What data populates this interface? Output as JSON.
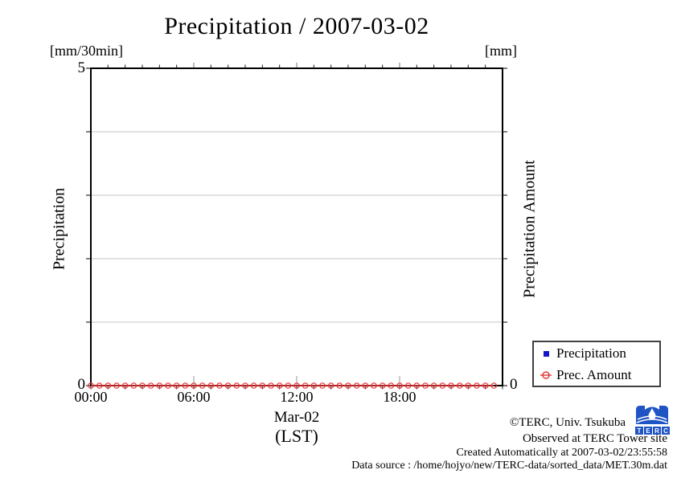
{
  "title": "Precipitation / 2007-03-02",
  "left_axis": {
    "unit": "[mm/30min]",
    "label": "Precipitation",
    "tick_top": "5",
    "tick_bottom": "0"
  },
  "right_axis": {
    "unit": "[mm]",
    "label": "Precipitation Amount",
    "tick_bottom": "0"
  },
  "x_axis": {
    "ticks": [
      "00:00",
      "06:00",
      "12:00",
      "18:00"
    ],
    "date_label": "Mar-02",
    "tz_label": "(LST)"
  },
  "legend": {
    "items": [
      {
        "label": "Precipitation",
        "marker": "square",
        "color": "#1414cc"
      },
      {
        "label": "Prec. Amount",
        "marker": "circle",
        "color": "#e23333"
      }
    ]
  },
  "footer": {
    "line1": "©TERC, Univ. Tsukuba",
    "line2": "Observed at TERC Tower site",
    "line3": "Created Automatically at 2007-03-02/23:55:58",
    "line4": "Data source : /home/hojyo/new/TERC-data/sorted_data/MET.30m.dat"
  },
  "logo": {
    "letters": [
      "T",
      "E",
      "R",
      "C"
    ],
    "color": "#1f54c4"
  },
  "colors": {
    "grid": "#c4c4c4",
    "border": "#000000",
    "red_series": "#e23333",
    "blue_series": "#1414cc"
  },
  "chart_data": {
    "type": "line",
    "title": "Precipitation / 2007-03-02",
    "xlabel": "Mar-02 (LST)",
    "x": [
      "00:00",
      "00:30",
      "01:00",
      "01:30",
      "02:00",
      "02:30",
      "03:00",
      "03:30",
      "04:00",
      "04:30",
      "05:00",
      "05:30",
      "06:00",
      "06:30",
      "07:00",
      "07:30",
      "08:00",
      "08:30",
      "09:00",
      "09:30",
      "10:00",
      "10:30",
      "11:00",
      "11:30",
      "12:00",
      "12:30",
      "13:00",
      "13:30",
      "14:00",
      "14:30",
      "15:00",
      "15:30",
      "16:00",
      "16:30",
      "17:00",
      "17:30",
      "18:00",
      "18:30",
      "19:00",
      "19:30",
      "20:00",
      "20:30",
      "21:00",
      "21:30",
      "22:00",
      "22:30",
      "23:00",
      "23:30"
    ],
    "series": [
      {
        "name": "Precipitation",
        "axis": "left",
        "unit": "mm/30min",
        "marker": "square",
        "color": "#1414cc",
        "visible": false,
        "values": [
          0,
          0,
          0,
          0,
          0,
          0,
          0,
          0,
          0,
          0,
          0,
          0,
          0,
          0,
          0,
          0,
          0,
          0,
          0,
          0,
          0,
          0,
          0,
          0,
          0,
          0,
          0,
          0,
          0,
          0,
          0,
          0,
          0,
          0,
          0,
          0,
          0,
          0,
          0,
          0,
          0,
          0,
          0,
          0,
          0,
          0,
          0,
          0
        ]
      },
      {
        "name": "Prec. Amount",
        "axis": "right",
        "unit": "mm",
        "marker": "circle",
        "color": "#e23333",
        "visible": true,
        "values": [
          0,
          0,
          0,
          0,
          0,
          0,
          0,
          0,
          0,
          0,
          0,
          0,
          0,
          0,
          0,
          0,
          0,
          0,
          0,
          0,
          0,
          0,
          0,
          0,
          0,
          0,
          0,
          0,
          0,
          0,
          0,
          0,
          0,
          0,
          0,
          0,
          0,
          0,
          0,
          0,
          0,
          0,
          0,
          0,
          0,
          0,
          0,
          0
        ]
      }
    ],
    "ylim_left": [
      0,
      5
    ],
    "x_major_ticks_hours": [
      0,
      6,
      12,
      18,
      24
    ],
    "grid": true,
    "legend_position": "bottom-right-outside"
  }
}
